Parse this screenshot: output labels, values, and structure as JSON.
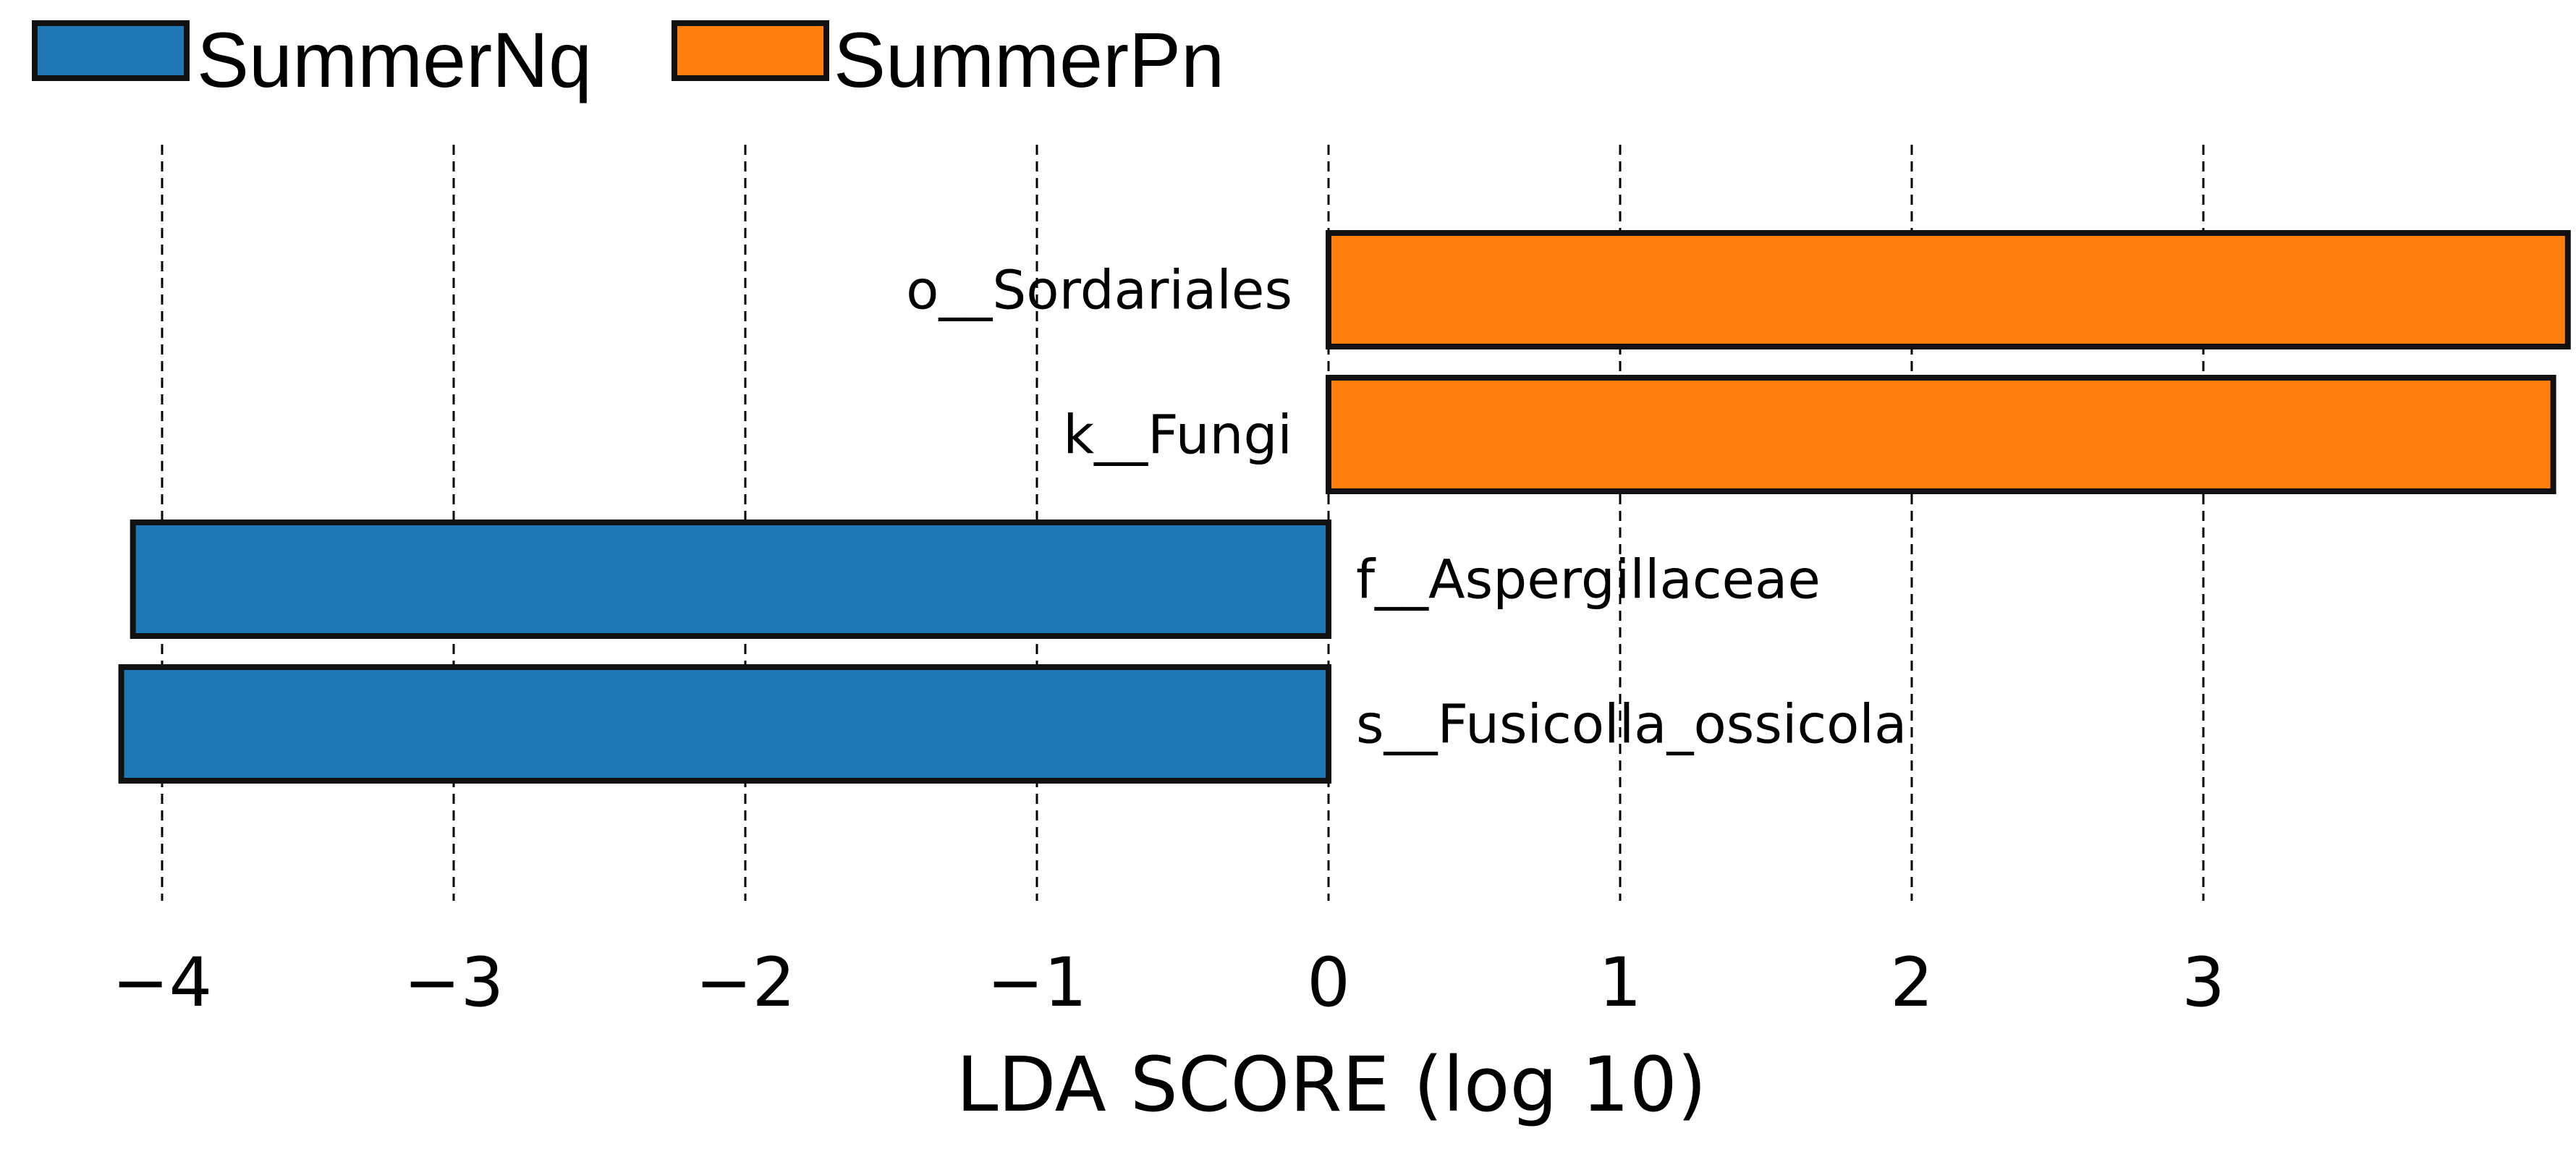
{
  "chart_data": {
    "type": "bar",
    "orientation": "horizontal",
    "xlabel": "LDA SCORE (log 10)",
    "xlim": [
      -4.4,
      4.3
    ],
    "xticks": [
      -4,
      -3,
      -2,
      -1,
      0,
      1,
      2,
      3
    ],
    "xtick_labels": [
      "−4",
      "−3",
      "−2",
      "−1",
      "0",
      "1",
      "2",
      "3"
    ],
    "grid": "vertical dashed at ticks",
    "legend": {
      "placement": "top-left",
      "entries": [
        {
          "name": "SummerNq",
          "color": "#1F77B4"
        },
        {
          "name": "SummerPn",
          "color": "#FF7F0E"
        }
      ]
    },
    "bars": [
      {
        "label": "o__Sordariales",
        "value": 4.25,
        "group": "SummerPn"
      },
      {
        "label": "k__Fungi",
        "value": 4.2,
        "group": "SummerPn"
      },
      {
        "label": "f__Aspergillaceae",
        "value": -4.1,
        "group": "SummerNq"
      },
      {
        "label": "s__Fusicolla_ossicola",
        "value": -4.14,
        "group": "SummerNq"
      }
    ]
  }
}
